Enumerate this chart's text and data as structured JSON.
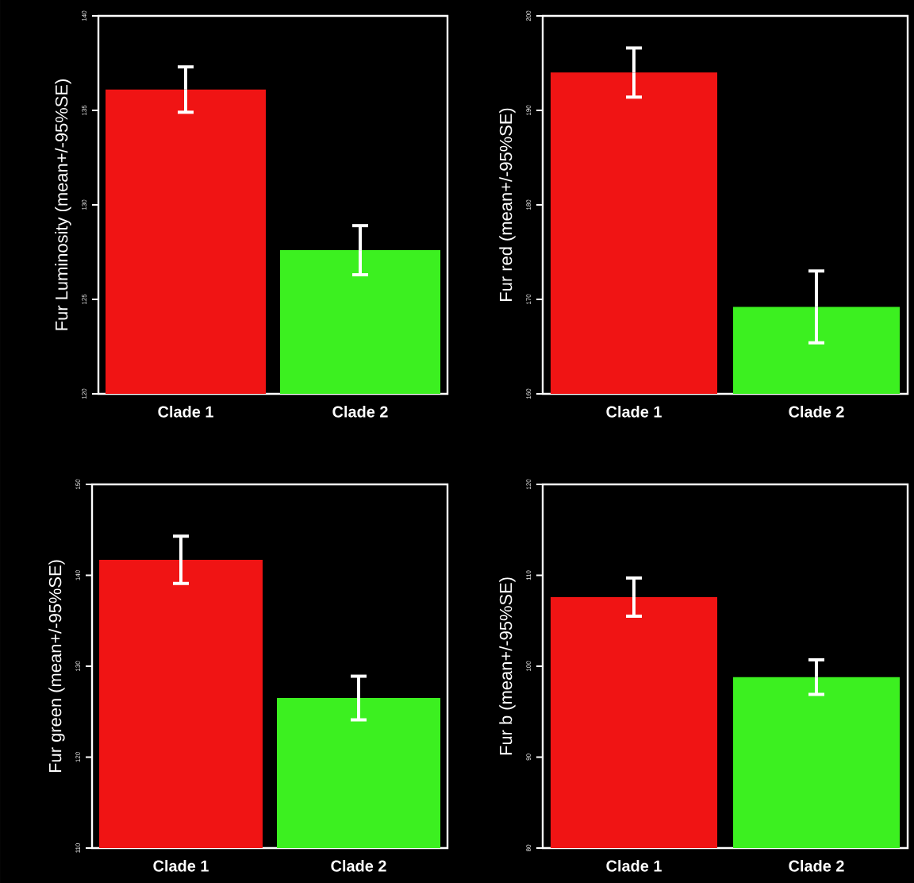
{
  "chart_data": [
    {
      "type": "bar",
      "ylabel": "Fur Luminosity (mean+/-95%SE)",
      "categories": [
        "Clade 1",
        "Clade 2"
      ],
      "values": [
        136.1,
        127.6
      ],
      "errors": [
        1.2,
        1.3
      ],
      "colors": [
        "#f01414",
        "#3cf020"
      ],
      "ylim": [
        120,
        140
      ],
      "yticks": [
        120,
        125,
        130,
        135,
        140
      ]
    },
    {
      "type": "bar",
      "ylabel": "Fur red (mean+/-95%SE)",
      "categories": [
        "Clade 1",
        "Clade 2"
      ],
      "values": [
        194.0,
        169.2
      ],
      "errors": [
        2.6,
        3.8
      ],
      "colors": [
        "#f01414",
        "#3cf020"
      ],
      "ylim": [
        160,
        200
      ],
      "yticks": [
        160,
        170,
        180,
        190,
        200
      ]
    },
    {
      "type": "bar",
      "ylabel": "Fur green (mean+/-95%SE)",
      "categories": [
        "Clade 1",
        "Clade 2"
      ],
      "values": [
        141.7,
        126.5
      ],
      "errors": [
        2.6,
        2.4
      ],
      "colors": [
        "#f01414",
        "#3cf020"
      ],
      "ylim": [
        110,
        150
      ],
      "yticks": [
        110,
        120,
        130,
        140,
        150
      ]
    },
    {
      "type": "bar",
      "ylabel": "Fur b (mean+/-95%SE)",
      "categories": [
        "Clade 1",
        "Clade 2"
      ],
      "values": [
        107.6,
        98.8
      ],
      "errors": [
        2.1,
        1.9
      ],
      "colors": [
        "#f01414",
        "#3cf020"
      ],
      "ylim": [
        80,
        120
      ],
      "yticks": [
        80,
        90,
        100,
        110,
        120
      ]
    }
  ]
}
